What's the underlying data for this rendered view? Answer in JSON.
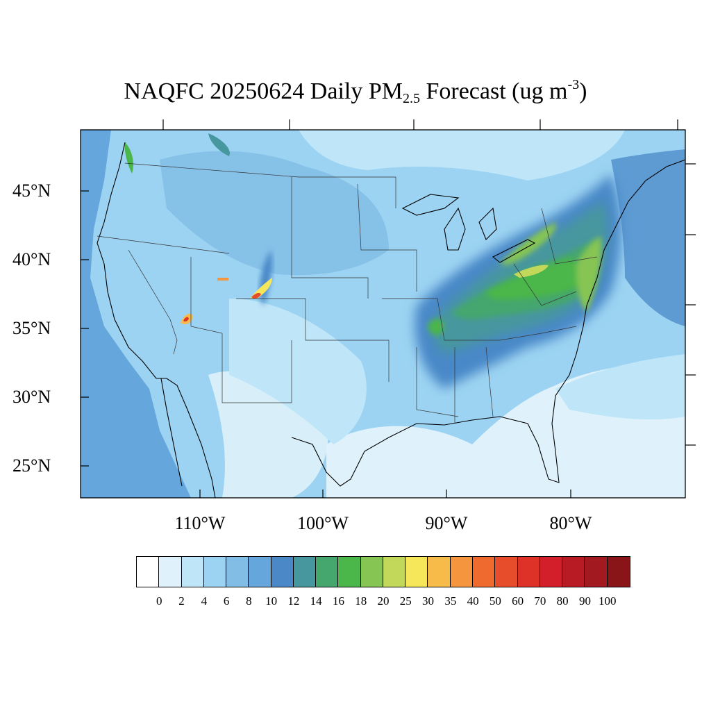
{
  "title": {
    "prefix": "NAQFC 20250624 Daily PM",
    "subscript": "2.5",
    "middle": " Forecast (ug m",
    "superscript": "-3",
    "suffix": ")"
  },
  "axes": {
    "lat_labels": [
      "45°N",
      "40°N",
      "35°N",
      "30°N",
      "25°N"
    ],
    "lon_labels": [
      "110°W",
      "100°W",
      "90°W",
      "80°W"
    ]
  },
  "legend": {
    "ticks": [
      "0",
      "2",
      "4",
      "6",
      "8",
      "10",
      "12",
      "14",
      "16",
      "18",
      "20",
      "25",
      "30",
      "35",
      "40",
      "50",
      "60",
      "70",
      "80",
      "90",
      "100"
    ],
    "colors": [
      "#ffffff",
      "#dff2fb",
      "#bfe5f8",
      "#9cd3f2",
      "#82bde6",
      "#65a6dc",
      "#4a88c8",
      "#47979e",
      "#45a66e",
      "#4bb64a",
      "#86c553",
      "#c2d85a",
      "#f6e65a",
      "#f7bb4a",
      "#f5953d",
      "#ef6a2f",
      "#e84d2b",
      "#de3128",
      "#d21f2a",
      "#b81b24",
      "#a21a20",
      "#8a1519"
    ]
  }
}
